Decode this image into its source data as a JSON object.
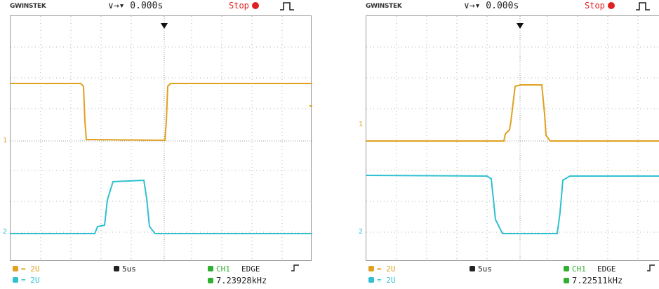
{
  "scopes": [
    {
      "brand": "GWINSTEK",
      "trigger_position": "∨→▾ 0.000s",
      "run_state": "Stop",
      "ch1_scale": "= 2U",
      "ch2_scale": "= 2U",
      "timebase": "5us",
      "trigger_source": "CH1",
      "trigger_type": "EDGE",
      "frequency": "7.23928kHz",
      "ch1_marker": "1",
      "ch2_marker": "2"
    },
    {
      "brand": "GWINSTEK",
      "trigger_position": "∨→▾ 0.000s",
      "run_state": "Stop",
      "ch1_scale": "= 2U",
      "ch2_scale": "= 2U",
      "timebase": "5us",
      "trigger_source": "CH1",
      "trigger_type": "EDGE",
      "frequency": "7.22511kHz",
      "ch1_marker": "1",
      "ch2_marker": "2"
    }
  ],
  "colors": {
    "ch1": "#e0a020",
    "ch2": "#30c0d0",
    "stop": "#e02020",
    "grid": "#b0b0b0"
  }
}
